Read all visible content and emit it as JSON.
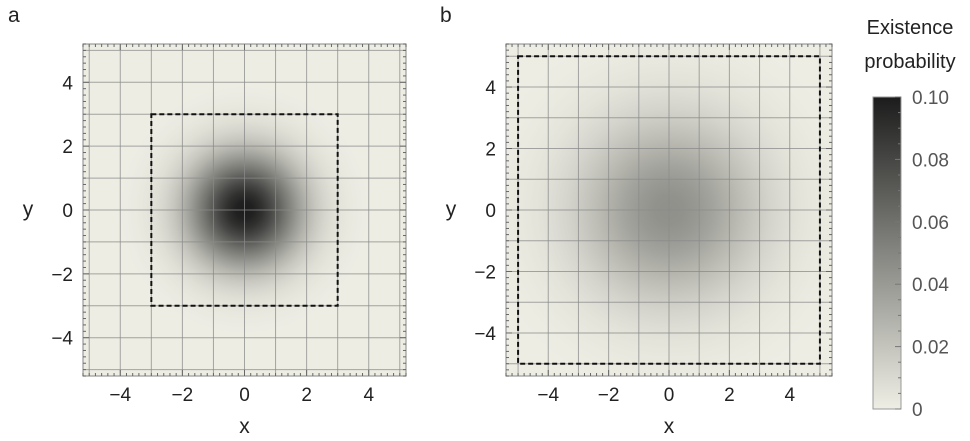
{
  "colors": {
    "low": "#eeeee5",
    "high": "#1c1c1c",
    "grid": "#8a8a8a",
    "frame": "#999999",
    "region_border": "#111111"
  },
  "colorbar": {
    "title_line1": "Existence",
    "title_line2": "probability",
    "min": 0,
    "max": 0.1,
    "ticks": [
      0,
      0.02,
      0.04,
      0.06,
      0.08,
      0.1
    ],
    "tick_labels": [
      "0",
      "0.02",
      "0.04",
      "0.06",
      "0.08",
      "0.10"
    ]
  },
  "chart_data": [
    {
      "type": "heatmap",
      "panel_label": "a",
      "xlabel": "x",
      "ylabel": "y",
      "xlim": [
        -5.2,
        5.2
      ],
      "ylim": [
        -5.2,
        5.2
      ],
      "xticks": [
        -4,
        -2,
        0,
        2,
        4
      ],
      "yticks": [
        -4,
        -2,
        0,
        2,
        4
      ],
      "xtick_labels": [
        "−4",
        "−2",
        "0",
        "2",
        "4"
      ],
      "ytick_labels": [
        "−4",
        "−2",
        "0",
        "2",
        "4"
      ],
      "grid": true,
      "gridlines": [
        -5,
        -4,
        -3,
        -2,
        -1,
        0,
        1,
        2,
        3,
        4,
        5
      ],
      "distribution": {
        "center": [
          0,
          0
        ],
        "sigma": 1.25,
        "peak": 0.1
      },
      "region": {
        "xmin": -3,
        "xmax": 3,
        "ymin": -3,
        "ymax": 3
      }
    },
    {
      "type": "heatmap",
      "panel_label": "b",
      "xlabel": "x",
      "ylabel": "y",
      "xlim": [
        -5.4,
        5.4
      ],
      "ylim": [
        -5.4,
        5.4
      ],
      "xticks": [
        -4,
        -2,
        0,
        2,
        4
      ],
      "yticks": [
        -4,
        -2,
        0,
        2,
        4
      ],
      "xtick_labels": [
        "−4",
        "−2",
        "0",
        "2",
        "4"
      ],
      "ytick_labels": [
        "−4",
        "−2",
        "0",
        "2",
        "4"
      ],
      "grid": true,
      "gridlines": [
        -5,
        -4,
        -3,
        -2,
        -1,
        0,
        1,
        2,
        3,
        4,
        5
      ],
      "distribution": {
        "center": [
          0,
          0
        ],
        "sigma": 2.1,
        "peak": 0.045
      },
      "region": {
        "xmin": -5,
        "xmax": 5,
        "ymin": -5,
        "ymax": 5
      }
    }
  ]
}
